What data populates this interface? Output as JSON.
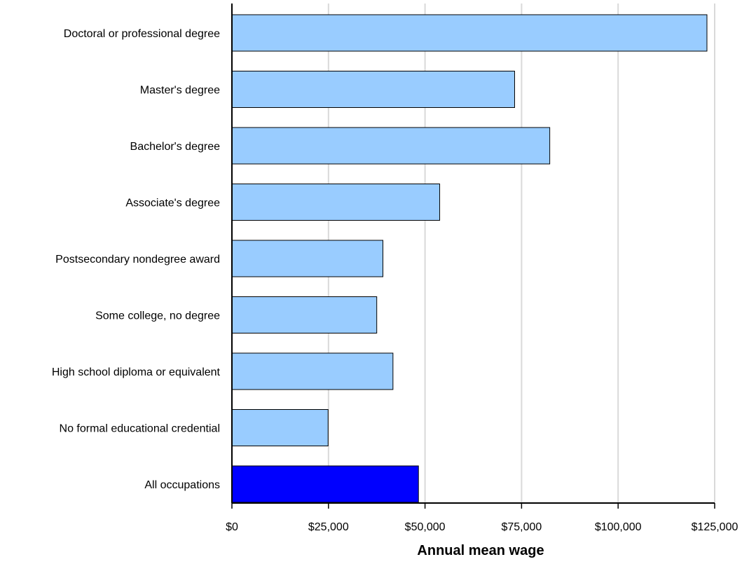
{
  "chart_data": {
    "type": "bar",
    "orientation": "horizontal",
    "title": "",
    "xlabel": "Annual mean wage",
    "ylabel": "",
    "categories": [
      "Doctoral or professional degree",
      "Master's degree",
      "Bachelor's degree",
      "Associate's degree",
      "Postsecondary nondegree award",
      "Some college, no degree",
      "High school diploma or equivalent",
      "No formal educational credential",
      "All occupations"
    ],
    "values": [
      123000,
      73200,
      82300,
      53800,
      39100,
      37500,
      41700,
      24900,
      48300
    ],
    "bar_colors": [
      "#99ccff",
      "#99ccff",
      "#99ccff",
      "#99ccff",
      "#99ccff",
      "#99ccff",
      "#99ccff",
      "#99ccff",
      "#0000ff"
    ],
    "xlim": [
      0,
      125000
    ],
    "xticks": [
      0,
      25000,
      50000,
      75000,
      100000,
      125000
    ],
    "xtick_labels": [
      "$0",
      "$25,000",
      "$50,000",
      "$75,000",
      "$100,000",
      "$125,000"
    ],
    "grid": "vertical",
    "legend": "none"
  }
}
